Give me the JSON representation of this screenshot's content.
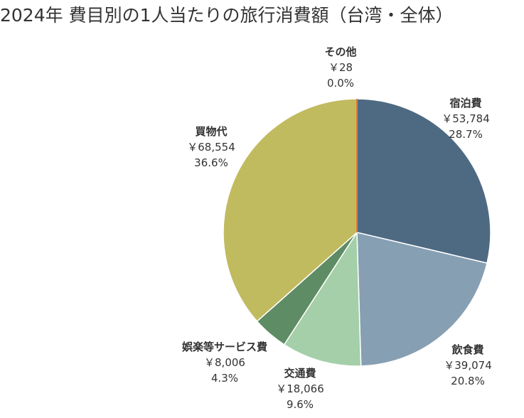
{
  "title": "2024年 費目別の1人当たりの旅行消費額（台湾・全体）",
  "chart_data": {
    "type": "pie",
    "title": "2024年 費目別の1人当たりの旅行消費額（台湾・全体）",
    "start": "12 o'clock",
    "direction": "clockwise",
    "slices": [
      {
        "name": "宿泊費",
        "value_label": "￥53,784",
        "value": 53784,
        "pct_label": "28.7%",
        "color": "#4e6a83"
      },
      {
        "name": "飲食費",
        "value_label": "￥39,074",
        "value": 39074,
        "pct_label": "20.8%",
        "color": "#879fb3"
      },
      {
        "name": "交通費",
        "value_label": "￥18,066",
        "value": 18066,
        "pct_label": "9.6%",
        "color": "#a4cfa8"
      },
      {
        "name": "娯楽等サービス費",
        "value_label": "￥8,006",
        "value": 8006,
        "pct_label": "4.3%",
        "color": "#5e8c64"
      },
      {
        "name": "買物代",
        "value_label": "￥68,554",
        "value": 68554,
        "pct_label": "36.6%",
        "color": "#c1bb60"
      },
      {
        "name": "その他",
        "value_label": "￥28",
        "value": 28,
        "pct_label": "0.0%",
        "color": "#e07b39"
      }
    ]
  }
}
